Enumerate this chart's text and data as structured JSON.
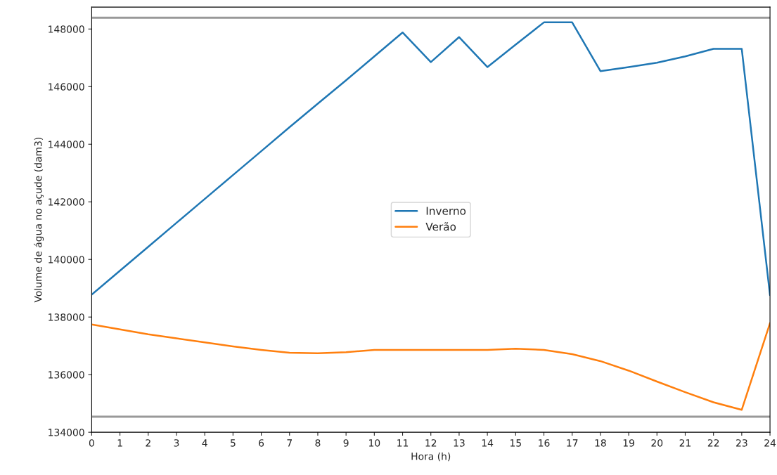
{
  "chart_data": {
    "type": "line",
    "xlabel": "Hora (h)",
    "ylabel": "Volume de água no açude (dam3)",
    "x": [
      0,
      1,
      2,
      3,
      4,
      5,
      6,
      7,
      8,
      9,
      10,
      11,
      12,
      13,
      14,
      15,
      16,
      17,
      18,
      19,
      20,
      21,
      22,
      23,
      24
    ],
    "series": [
      {
        "name": "Inverno",
        "color": "#1f77b4",
        "values": [
          138780,
          139610,
          140440,
          141270,
          142100,
          142930,
          143760,
          144590,
          145410,
          146220,
          147050,
          147880,
          146850,
          147720,
          146680,
          147460,
          148230,
          148230,
          146540,
          146680,
          146830,
          147050,
          147310,
          147310,
          138760
        ]
      },
      {
        "name": "Verão",
        "color": "#ff7f0e",
        "values": [
          137740,
          137570,
          137400,
          137260,
          137120,
          136980,
          136860,
          136760,
          136740,
          136780,
          136860,
          136860,
          136860,
          136860,
          136860,
          136900,
          136860,
          136710,
          136470,
          136140,
          135760,
          135390,
          135040,
          134780,
          137790
        ]
      }
    ],
    "xlim": [
      0,
      24
    ],
    "xticks": [
      0,
      1,
      2,
      3,
      4,
      5,
      6,
      7,
      8,
      9,
      10,
      11,
      12,
      13,
      14,
      15,
      16,
      17,
      18,
      19,
      20,
      21,
      22,
      23,
      24
    ],
    "ylim": [
      134000,
      148760
    ],
    "yticks": [
      134000,
      136000,
      138000,
      140000,
      142000,
      144000,
      146000,
      148000
    ],
    "ref_lines": [
      {
        "axis": "y",
        "value": 148390,
        "color": "#999999"
      },
      {
        "axis": "y",
        "value": 134540,
        "color": "#999999"
      }
    ],
    "grid": false,
    "legend": "center",
    "marker": "none",
    "line_style": "solid"
  }
}
